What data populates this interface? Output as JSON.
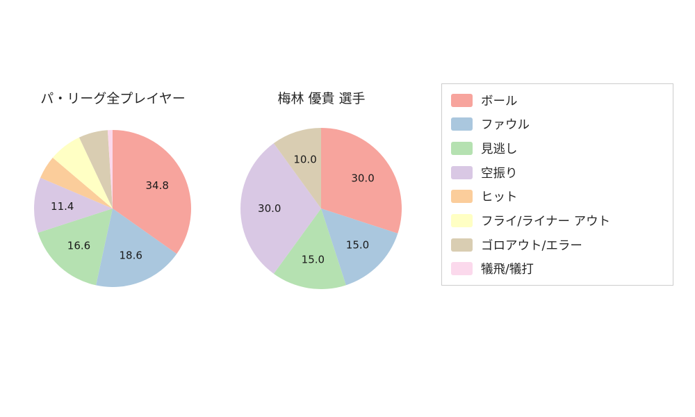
{
  "chart_data": [
    {
      "type": "pie",
      "title": "パ・リーグ全プレイヤー",
      "labels": [
        "ボール",
        "ファウル",
        "見逃し",
        "空振り",
        "ヒット",
        "フライ/ライナー アウト",
        "ゴロアウト/エラー",
        "犠飛/犠打"
      ],
      "values": [
        34.8,
        18.6,
        16.6,
        11.4,
        4.8,
        6.8,
        6.0,
        1.0
      ],
      "colors": [
        "#F7A49D",
        "#AAC7DE",
        "#B5E1B1",
        "#D9C8E4",
        "#FBCD9B",
        "#FFFFC4",
        "#D9CDB2",
        "#FBD9EC"
      ],
      "shown_value_labels": [
        "34.8",
        "18.6",
        "16.6",
        "11.4"
      ],
      "start_angle_deg": 0,
      "direction": "clockwise",
      "label_min": 10
    },
    {
      "type": "pie",
      "title": "梅林 優貴  選手",
      "labels": [
        "ボール",
        "ファウル",
        "見逃し",
        "空振り",
        "ゴロアウト/エラー"
      ],
      "values": [
        30.0,
        15.0,
        15.0,
        30.0,
        10.0
      ],
      "colors": [
        "#F7A49D",
        "#AAC7DE",
        "#B5E1B1",
        "#D9C8E4",
        "#D9CDB2"
      ],
      "shown_value_labels": [
        "30.0",
        "15.0",
        "15.0",
        "30.0",
        "10.0"
      ],
      "start_angle_deg": 0,
      "direction": "clockwise",
      "label_min": 10
    }
  ],
  "legend": {
    "items": [
      {
        "label": "ボール",
        "color": "#F7A49D"
      },
      {
        "label": "ファウル",
        "color": "#AAC7DE"
      },
      {
        "label": "見逃し",
        "color": "#B5E1B1"
      },
      {
        "label": "空振り",
        "color": "#D9C8E4"
      },
      {
        "label": "ヒット",
        "color": "#FBCD9B"
      },
      {
        "label": "フライ/ライナー アウト",
        "color": "#FFFFC4"
      },
      {
        "label": "ゴロアウト/エラー",
        "color": "#D9CDB2"
      },
      {
        "label": "犠飛/犠打",
        "color": "#FBD9EC"
      }
    ]
  }
}
